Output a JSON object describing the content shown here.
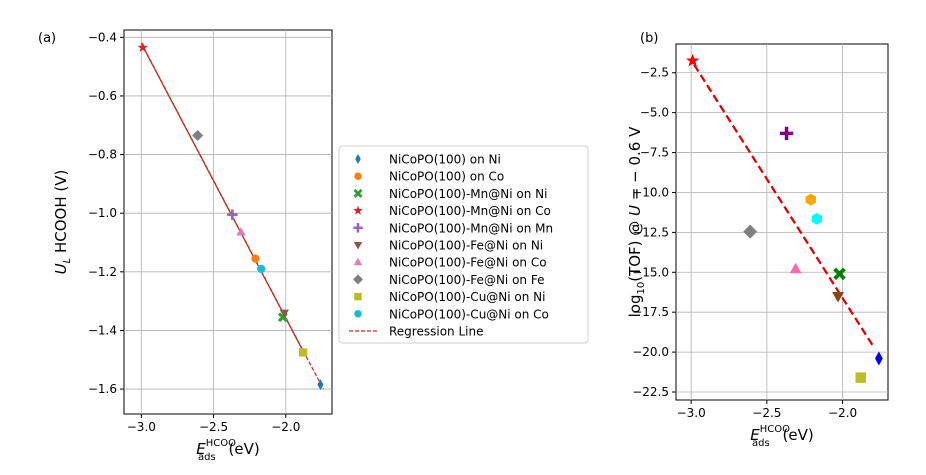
{
  "chart_data": [
    {
      "type": "scatter",
      "panel_label": "(a)",
      "xlabel": {
        "base": "E",
        "sub": "ads",
        "sup": "HCOO",
        "unit": "(eV)"
      },
      "ylabel": {
        "base": "U",
        "sub": "L",
        "rest": "HCOOH (V)"
      },
      "xlim": [
        -3.12,
        -1.68
      ],
      "ylim": [
        -1.685,
        -0.375
      ],
      "xticks": [
        -3.0,
        -2.5,
        -2.0
      ],
      "xtick_labels": [
        "−3.0",
        "−2.5",
        "−2.0"
      ],
      "yticks": [
        -1.6,
        -1.4,
        -1.2,
        -1.0,
        -0.8,
        -0.6,
        -0.4
      ],
      "ytick_labels": [
        "−1.6",
        "−1.4",
        "−1.2",
        "−1.0",
        "−0.8",
        "−0.6",
        "−0.4"
      ],
      "points": [
        {
          "name": "NiCoPO(100) on Ni",
          "x": -1.76,
          "y": -1.585
        },
        {
          "name": "NiCoPO(100) on Co",
          "x": -2.21,
          "y": -1.155
        },
        {
          "name": "NiCoPO(100)-Mn@Ni on Ni",
          "x": -2.02,
          "y": -1.355
        },
        {
          "name": "NiCoPO(100)-Mn@Ni on Co",
          "x": -2.99,
          "y": -0.435
        },
        {
          "name": "NiCoPO(100)-Mn@Ni on Mn",
          "x": -2.37,
          "y": -1.005
        },
        {
          "name": "NiCoPO(100)-Fe@Ni on Ni",
          "x": -2.01,
          "y": -1.34
        },
        {
          "name": "NiCoPO(100)-Fe@Ni on Co",
          "x": -2.31,
          "y": -1.065
        },
        {
          "name": "NiCoPO(100)-Fe@Ni on Fe",
          "x": -2.61,
          "y": -0.735
        },
        {
          "name": "NiCoPO(100)-Cu@Ni on Ni",
          "x": -1.88,
          "y": -1.475
        },
        {
          "name": "NiCoPO(100)-Cu@Ni on Co",
          "x": -2.17,
          "y": -1.19
        }
      ],
      "regression": {
        "x": [
          -3.0,
          -1.74
        ],
        "y": [
          -0.42,
          -1.6
        ]
      },
      "fit_segment": {
        "x": [
          -2.98,
          -1.87
        ],
        "y": [
          -0.44,
          -1.48
        ]
      }
    },
    {
      "type": "scatter",
      "panel_label": "(b)",
      "xlabel": {
        "base": "E",
        "sub": "ads",
        "sup": "HCOO",
        "unit": "(eV)"
      },
      "ylabel": {
        "pre": "log",
        "sub": "10",
        "mid": "(TOF) @ ",
        "var": "U",
        "post": " = − 0.6 V"
      },
      "xlim": [
        -3.1,
        -1.7
      ],
      "ylim": [
        -23.0,
        -0.7
      ],
      "xticks": [
        -3.0,
        -2.5,
        -2.0
      ],
      "xtick_labels": [
        "−3.0",
        "−2.5",
        "−2.0"
      ],
      "yticks": [
        -22.5,
        -20.0,
        -17.5,
        -15.0,
        -12.5,
        -10.0,
        -7.5,
        -5.0,
        -2.5
      ],
      "ytick_labels": [
        "−22.5",
        "−20.0",
        "−17.5",
        "−15.0",
        "−12.5",
        "−10.0",
        "−7.5",
        "−5.0",
        "−2.5"
      ],
      "points": [
        {
          "name": "NiCoPO(100) on Ni",
          "x": -1.76,
          "y": -20.4
        },
        {
          "name": "NiCoPO(100) on Co",
          "x": -2.21,
          "y": -10.45
        },
        {
          "name": "NiCoPO(100)-Mn@Ni on Ni",
          "x": -2.02,
          "y": -15.1
        },
        {
          "name": "NiCoPO(100)-Mn@Ni on Co",
          "x": -2.99,
          "y": -1.75
        },
        {
          "name": "NiCoPO(100)-Mn@Ni on Mn",
          "x": -2.37,
          "y": -6.3
        },
        {
          "name": "NiCoPO(100)-Fe@Ni on Ni",
          "x": -2.03,
          "y": -16.5
        },
        {
          "name": "NiCoPO(100)-Fe@Ni on Co",
          "x": -2.31,
          "y": -14.8
        },
        {
          "name": "NiCoPO(100)-Fe@Ni on Fe",
          "x": -2.61,
          "y": -12.45
        },
        {
          "name": "NiCoPO(100)-Cu@Ni on Ni",
          "x": -1.88,
          "y": -21.6
        },
        {
          "name": "NiCoPO(100)-Cu@Ni on Co",
          "x": -2.17,
          "y": -11.65
        }
      ],
      "regression": {
        "x": [
          -2.98,
          -1.8
        ],
        "y": [
          -2.0,
          -19.6
        ]
      }
    }
  ],
  "legend": {
    "entries": [
      {
        "label": "NiCoPO(100) on Ni",
        "marker": "diamond",
        "color": "#1f77b4"
      },
      {
        "label": "NiCoPO(100) on Co",
        "marker": "circle",
        "color": "#ff7f0e"
      },
      {
        "label": "NiCoPO(100)-Mn@Ni on Ni",
        "marker": "x",
        "color": "#2ca02c"
      },
      {
        "label": "NiCoPO(100)-Mn@Ni on Co",
        "marker": "star",
        "color": "#d62728"
      },
      {
        "label": "NiCoPO(100)-Mn@Ni on Mn",
        "marker": "plus",
        "color": "#9467bd"
      },
      {
        "label": "NiCoPO(100)-Fe@Ni on Ni",
        "marker": "triangle-down",
        "color": "#8c564b"
      },
      {
        "label": "NiCoPO(100)-Fe@Ni on Co",
        "marker": "triangle-up",
        "color": "#e377c2"
      },
      {
        "label": "NiCoPO(100)-Fe@Ni on Fe",
        "marker": "diamond-fat",
        "color": "#7f7f7f"
      },
      {
        "label": "NiCoPO(100)-Cu@Ni on Ni",
        "marker": "square",
        "color": "#bcbd22"
      },
      {
        "label": "NiCoPO(100)-Cu@Ni on Co",
        "marker": "circle",
        "color": "#17becf"
      },
      {
        "label": "Regression Line",
        "marker": "dashed-line",
        "color": "#d62728"
      }
    ]
  },
  "panel_b_styles": [
    {
      "marker": "diamond",
      "color": "#0000ff"
    },
    {
      "marker": "hexagon",
      "color": "#ffa500"
    },
    {
      "marker": "x",
      "color": "#008000"
    },
    {
      "marker": "star",
      "color": "#ff0000"
    },
    {
      "marker": "plus",
      "color": "#800080"
    },
    {
      "marker": "triangle-down",
      "color": "#8b4513"
    },
    {
      "marker": "triangle-up",
      "color": "#ff69b4"
    },
    {
      "marker": "diamond-fat",
      "color": "#808080"
    },
    {
      "marker": "square",
      "color": "#bcbd22"
    },
    {
      "marker": "hexagon",
      "color": "#00ffff"
    }
  ],
  "colors": {
    "regression_a": "#d62728",
    "fit_a": "#2ca02c",
    "regression_b": "#dd0000"
  }
}
